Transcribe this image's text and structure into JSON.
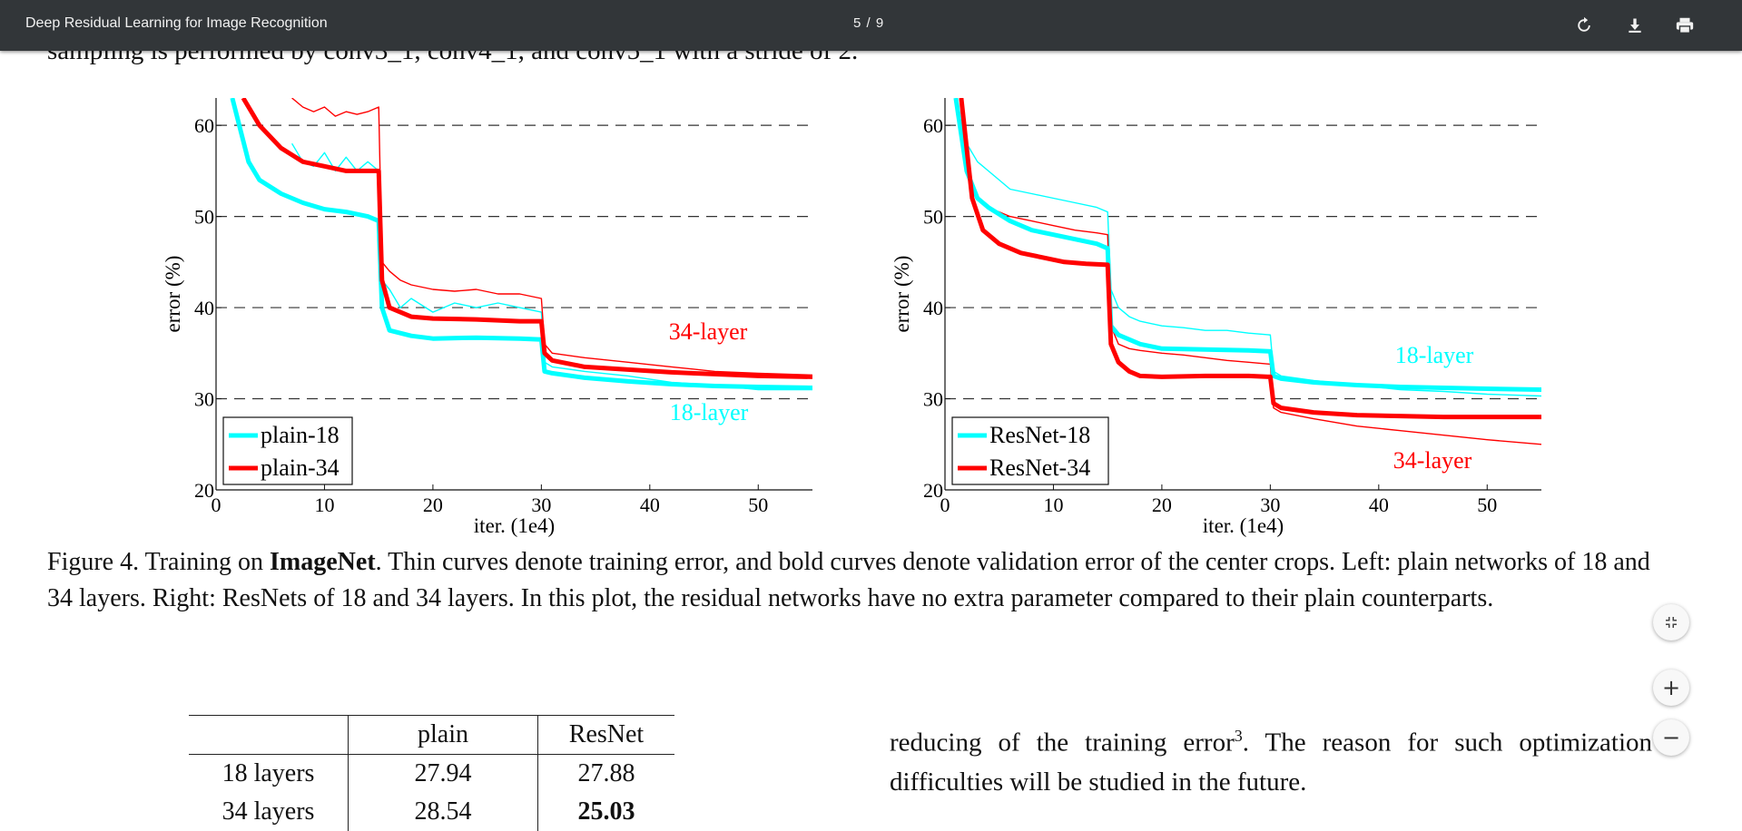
{
  "toolbar": {
    "title": "Deep Residual Learning for Image Recognition",
    "page_indicator": "5 / 9",
    "icons": [
      "rotate-icon",
      "download-icon",
      "print-icon"
    ]
  },
  "document": {
    "cut_line": "sampling is performed by conv3_1, conv4_1, and conv5_1 with a stride of 2.",
    "caption": {
      "prefix": "Figure 4. Training on ",
      "bold": "ImageNet",
      "rest": ". Thin curves denote training error, and bold curves denote validation error of the center crops. Left: plain networks of 18 and 34 layers. Right: ResNets of 18 and 34 layers. In this plot, the residual networks have no extra parameter compared to their plain counterparts."
    },
    "table": {
      "headers": [
        "",
        "plain",
        "ResNet"
      ],
      "rows": [
        [
          "18 layers",
          "27.94",
          "27.88"
        ],
        [
          "34 layers",
          "28.54",
          "25.03"
        ]
      ]
    },
    "body_text": {
      "part1": "reducing of the training error",
      "sup": "3",
      "part2": ". The reason for such optimization difficulties will be studied in the future."
    }
  },
  "zoom_controls": {
    "fit": "fit-page-icon",
    "plus": "+",
    "minus": "−"
  },
  "chart_data": [
    {
      "type": "line",
      "xlabel": "iter. (1e4)",
      "ylabel": "error (%)",
      "xlim": [
        0,
        55
      ],
      "ylim": [
        20,
        63
      ],
      "xticks": [
        0,
        10,
        20,
        30,
        40,
        50
      ],
      "yticks": [
        20,
        30,
        40,
        50,
        60
      ],
      "grid": "dashed horizontal at 30, 40, 50, 60",
      "legend_placement": "bottom-left",
      "legend": [
        {
          "label": "plain-18",
          "color": "#00ffff"
        },
        {
          "label": "plain-34",
          "color": "#ff0000"
        }
      ],
      "annotations": [
        {
          "text": "34-layer",
          "color": "#ff0000"
        },
        {
          "text": "18-layer",
          "color": "#00ffff"
        }
      ],
      "series": [
        {
          "name": "plain-18",
          "style": "bold",
          "color": "#00ffff",
          "x": [
            1.5,
            3,
            4,
            6,
            8,
            10,
            12,
            14,
            15,
            15.3,
            16,
            18,
            20,
            24,
            28,
            30,
            30.3,
            31,
            34,
            38,
            42,
            46,
            50,
            55
          ],
          "y": [
            63,
            56,
            54,
            52.5,
            51.5,
            50.8,
            50.5,
            50,
            49.5,
            40,
            37.5,
            36.9,
            36.6,
            36.7,
            36.6,
            36.5,
            33,
            32.8,
            32.3,
            31.9,
            31.6,
            31.4,
            31.3,
            31.2
          ]
        },
        {
          "name": "plain-34",
          "style": "bold",
          "color": "#ff0000",
          "x": [
            2.5,
            4,
            6,
            8,
            10,
            12,
            14,
            15,
            15.3,
            16,
            18,
            20,
            24,
            28,
            30,
            30.3,
            31,
            34,
            38,
            42,
            46,
            50,
            55
          ],
          "y": [
            63,
            60,
            57.5,
            56,
            55.5,
            55,
            55,
            55,
            43,
            40,
            39,
            38.8,
            38.7,
            38.5,
            38.5,
            35,
            34.2,
            33.5,
            33.2,
            32.9,
            32.7,
            32.5,
            32.4
          ]
        },
        {
          "name": "plain-18 train",
          "style": "thin",
          "color": "#00ffff",
          "x": [
            7,
            8,
            9,
            10,
            11,
            12,
            13,
            14,
            15,
            15.3,
            16,
            17,
            18,
            20,
            22,
            24,
            26,
            28,
            30,
            30.3,
            31,
            34,
            38,
            42,
            46,
            50,
            55
          ],
          "y": [
            58,
            56,
            55.5,
            57,
            55,
            56.5,
            55,
            56,
            55,
            43,
            42,
            40,
            41,
            39.5,
            40.5,
            40,
            40.5,
            40,
            39.5,
            34,
            33.5,
            33,
            32.5,
            31.8,
            31.5,
            31,
            31
          ]
        },
        {
          "name": "plain-34 train",
          "style": "thin",
          "color": "#ff0000",
          "x": [
            7,
            8,
            9,
            10,
            11,
            12,
            13,
            14,
            15,
            15.3,
            16,
            17,
            18,
            20,
            22,
            24,
            26,
            28,
            30,
            30.3,
            31,
            34,
            38,
            42,
            46,
            50,
            55
          ],
          "y": [
            63,
            62,
            61.5,
            62,
            61,
            61.5,
            61.2,
            61.5,
            62,
            45,
            44,
            43,
            42.5,
            42,
            41.8,
            42,
            41.5,
            41.5,
            41,
            36,
            35,
            34.5,
            34,
            33.5,
            33,
            32.8,
            32.6
          ]
        }
      ]
    },
    {
      "type": "line",
      "xlabel": "iter. (1e4)",
      "ylabel": "error (%)",
      "xlim": [
        0,
        55
      ],
      "ylim": [
        20,
        63
      ],
      "xticks": [
        0,
        10,
        20,
        30,
        40,
        50
      ],
      "yticks": [
        20,
        30,
        40,
        50,
        60
      ],
      "grid": "dashed horizontal at 30, 40, 50, 60",
      "legend_placement": "bottom-left",
      "legend": [
        {
          "label": "ResNet-18",
          "color": "#00ffff"
        },
        {
          "label": "ResNet-34",
          "color": "#ff0000"
        }
      ],
      "annotations": [
        {
          "text": "18-layer",
          "color": "#00ffff"
        },
        {
          "text": "34-layer",
          "color": "#ff0000"
        }
      ],
      "series": [
        {
          "name": "ResNet-18",
          "style": "bold",
          "color": "#00ffff",
          "x": [
            1,
            2,
            3,
            4,
            6,
            8,
            10,
            12,
            14,
            15,
            15.3,
            16,
            18,
            20,
            24,
            28,
            30,
            30.3,
            31,
            34,
            38,
            42,
            46,
            50,
            55
          ],
          "y": [
            63,
            55,
            52,
            51,
            49.5,
            48.5,
            48,
            47.5,
            47,
            46.5,
            38,
            37,
            36,
            35.5,
            35.4,
            35.3,
            35.2,
            32.5,
            32.2,
            31.8,
            31.5,
            31.3,
            31.2,
            31.1,
            31
          ]
        },
        {
          "name": "ResNet-34",
          "style": "bold",
          "color": "#ff0000",
          "x": [
            1.5,
            2.5,
            3.5,
            5,
            7,
            9,
            11,
            13,
            15,
            15.3,
            16,
            17,
            18,
            20,
            24,
            28,
            30,
            30.3,
            31,
            34,
            38,
            42,
            46,
            50,
            55
          ],
          "y": [
            63,
            52,
            48.5,
            47,
            46,
            45.5,
            45,
            44.8,
            44.7,
            36,
            34,
            33,
            32.5,
            32.4,
            32.5,
            32.5,
            32.4,
            29.5,
            29,
            28.5,
            28.2,
            28.1,
            28,
            28,
            28
          ]
        },
        {
          "name": "ResNet-18 train",
          "style": "thin",
          "color": "#00ffff",
          "x": [
            1.5,
            2,
            3,
            4,
            5,
            6,
            8,
            10,
            12,
            14,
            15,
            15.3,
            16,
            17,
            18,
            20,
            22,
            24,
            26,
            28,
            30,
            30.3,
            31,
            34,
            38,
            42,
            46,
            50,
            55
          ],
          "y": [
            63,
            58,
            56,
            55,
            54,
            53,
            52.5,
            52,
            51.5,
            51,
            50.5,
            42,
            40,
            39,
            38.5,
            38,
            37.8,
            37.5,
            37.5,
            37.2,
            37,
            33,
            32.5,
            32,
            31.5,
            31,
            30.8,
            30.5,
            30.3
          ]
        },
        {
          "name": "ResNet-34 train",
          "style": "thin",
          "color": "#ff0000",
          "x": [
            1.5,
            2,
            3,
            4,
            5,
            6,
            8,
            10,
            12,
            14,
            15,
            15.3,
            16,
            17,
            18,
            20,
            22,
            24,
            26,
            28,
            30,
            30.3,
            31,
            34,
            38,
            42,
            46,
            50,
            55
          ],
          "y": [
            63,
            55,
            52,
            51,
            50.5,
            50,
            49.5,
            49,
            48.5,
            48.2,
            48,
            38,
            36,
            35.5,
            35.3,
            35,
            34.8,
            34.5,
            34.2,
            34,
            33.8,
            29,
            28.5,
            27.8,
            27,
            26.5,
            26,
            25.5,
            25
          ]
        }
      ]
    }
  ]
}
